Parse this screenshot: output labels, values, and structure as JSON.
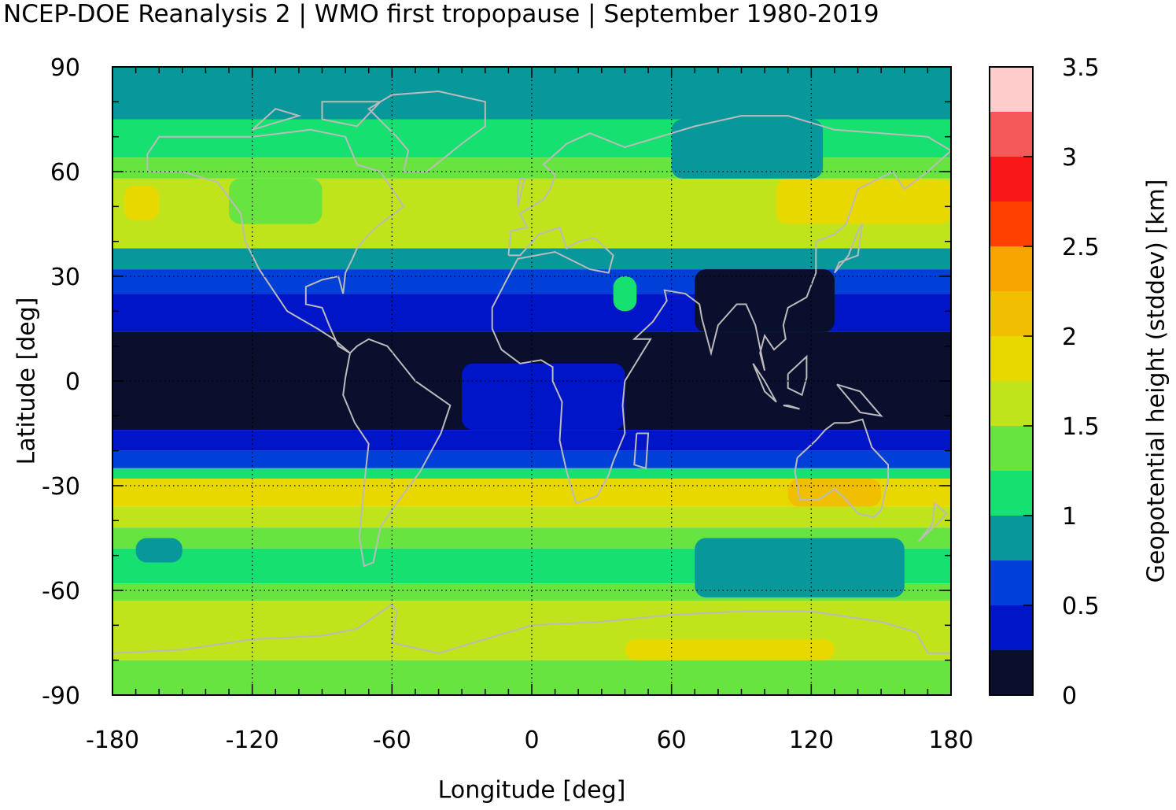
{
  "chart_data": {
    "type": "heatmap",
    "title": "NCEP-DOE Reanalysis 2 | WMO first tropopause | September 1980-2019",
    "xlabel": "Longitude [deg]",
    "ylabel": "Latitude [deg]",
    "colorbar_label": "Geopotential height (stddev) [km]",
    "xlim": [
      -180,
      180
    ],
    "ylim": [
      -90,
      90
    ],
    "xticks": [
      "-180",
      "-120",
      "-60",
      "0",
      "60",
      "120",
      "180"
    ],
    "yticks": [
      "90",
      "60",
      "30",
      "0",
      "-30",
      "-60",
      "-90"
    ],
    "grid": true,
    "colorbar_ticks": [
      "3.5",
      "3",
      "2.5",
      "2",
      "1.5",
      "1",
      "0.5",
      "0"
    ],
    "colorbar_range": [
      0,
      3.5
    ],
    "colorbar_levels": [
      {
        "from": 0.0,
        "to": 0.25,
        "color": "#0b0f2e"
      },
      {
        "from": 0.25,
        "to": 0.5,
        "color": "#0014c8"
      },
      {
        "from": 0.5,
        "to": 0.75,
        "color": "#0040d8"
      },
      {
        "from": 0.75,
        "to": 1.0,
        "color": "#08989c"
      },
      {
        "from": 1.0,
        "to": 1.25,
        "color": "#16e070"
      },
      {
        "from": 1.25,
        "to": 1.5,
        "color": "#68e440"
      },
      {
        "from": 1.5,
        "to": 1.75,
        "color": "#c0e41c"
      },
      {
        "from": 1.75,
        "to": 2.0,
        "color": "#e8d800"
      },
      {
        "from": 2.0,
        "to": 2.25,
        "color": "#f0c000"
      },
      {
        "from": 2.25,
        "to": 2.5,
        "color": "#f8a400"
      },
      {
        "from": 2.5,
        "to": 2.75,
        "color": "#ff4000"
      },
      {
        "from": 2.75,
        "to": 3.0,
        "color": "#f81818"
      },
      {
        "from": 3.0,
        "to": 3.25,
        "color": "#f45858"
      },
      {
        "from": 3.25,
        "to": 3.5,
        "color": "#ffcccc"
      }
    ],
    "zonal_bands": [
      {
        "lat": [
          75,
          90
        ],
        "value": 0.9
      },
      {
        "lat": [
          64,
          75
        ],
        "value": 1.2
      },
      {
        "lat": [
          58,
          64
        ],
        "value": 1.4
      },
      {
        "lat": [
          45,
          58
        ],
        "value": 1.7
      },
      {
        "lat": [
          38,
          45
        ],
        "value": 1.5
      },
      {
        "lat": [
          32,
          38
        ],
        "value": 0.9
      },
      {
        "lat": [
          25,
          32
        ],
        "value": 0.6
      },
      {
        "lat": [
          14,
          25
        ],
        "value": 0.4
      },
      {
        "lat": [
          -14,
          14
        ],
        "value": 0.15
      },
      {
        "lat": [
          -20,
          -14
        ],
        "value": 0.4
      },
      {
        "lat": [
          -25,
          -20
        ],
        "value": 0.6
      },
      {
        "lat": [
          -28,
          -25
        ],
        "value": 1.2
      },
      {
        "lat": [
          -36,
          -28
        ],
        "value": 1.8
      },
      {
        "lat": [
          -42,
          -36
        ],
        "value": 1.6
      },
      {
        "lat": [
          -48,
          -42
        ],
        "value": 1.4
      },
      {
        "lat": [
          -58,
          -48
        ],
        "value": 1.1
      },
      {
        "lat": [
          -63,
          -58
        ],
        "value": 1.3
      },
      {
        "lat": [
          -80,
          -63
        ],
        "value": 1.6
      },
      {
        "lat": [
          -90,
          -80
        ],
        "value": 1.4
      }
    ],
    "regional_patches": [
      {
        "lon": [
          105,
          180
        ],
        "lat": [
          45,
          58
        ],
        "value": 1.9
      },
      {
        "lon": [
          -175,
          -160
        ],
        "lat": [
          46,
          56
        ],
        "value": 1.8
      },
      {
        "lon": [
          60,
          125
        ],
        "lat": [
          58,
          75
        ],
        "value": 0.9
      },
      {
        "lon": [
          -130,
          -90
        ],
        "lat": [
          45,
          58
        ],
        "value": 1.4
      },
      {
        "lon": [
          70,
          130
        ],
        "lat": [
          14,
          32
        ],
        "value": 0.15
      },
      {
        "lon": [
          35,
          45
        ],
        "lat": [
          20,
          30
        ],
        "value": 1.2
      },
      {
        "lon": [
          -30,
          40
        ],
        "lat": [
          -14,
          5
        ],
        "value": 0.4
      },
      {
        "lon": [
          110,
          150
        ],
        "lat": [
          -36,
          -28
        ],
        "value": 2.1
      },
      {
        "lon": [
          -170,
          -150
        ],
        "lat": [
          -52,
          -45
        ],
        "value": 0.9
      },
      {
        "lon": [
          70,
          160
        ],
        "lat": [
          -62,
          -45
        ],
        "value": 0.9
      },
      {
        "lon": [
          40,
          130
        ],
        "lat": [
          -80,
          -74
        ],
        "value": 1.8
      }
    ]
  }
}
